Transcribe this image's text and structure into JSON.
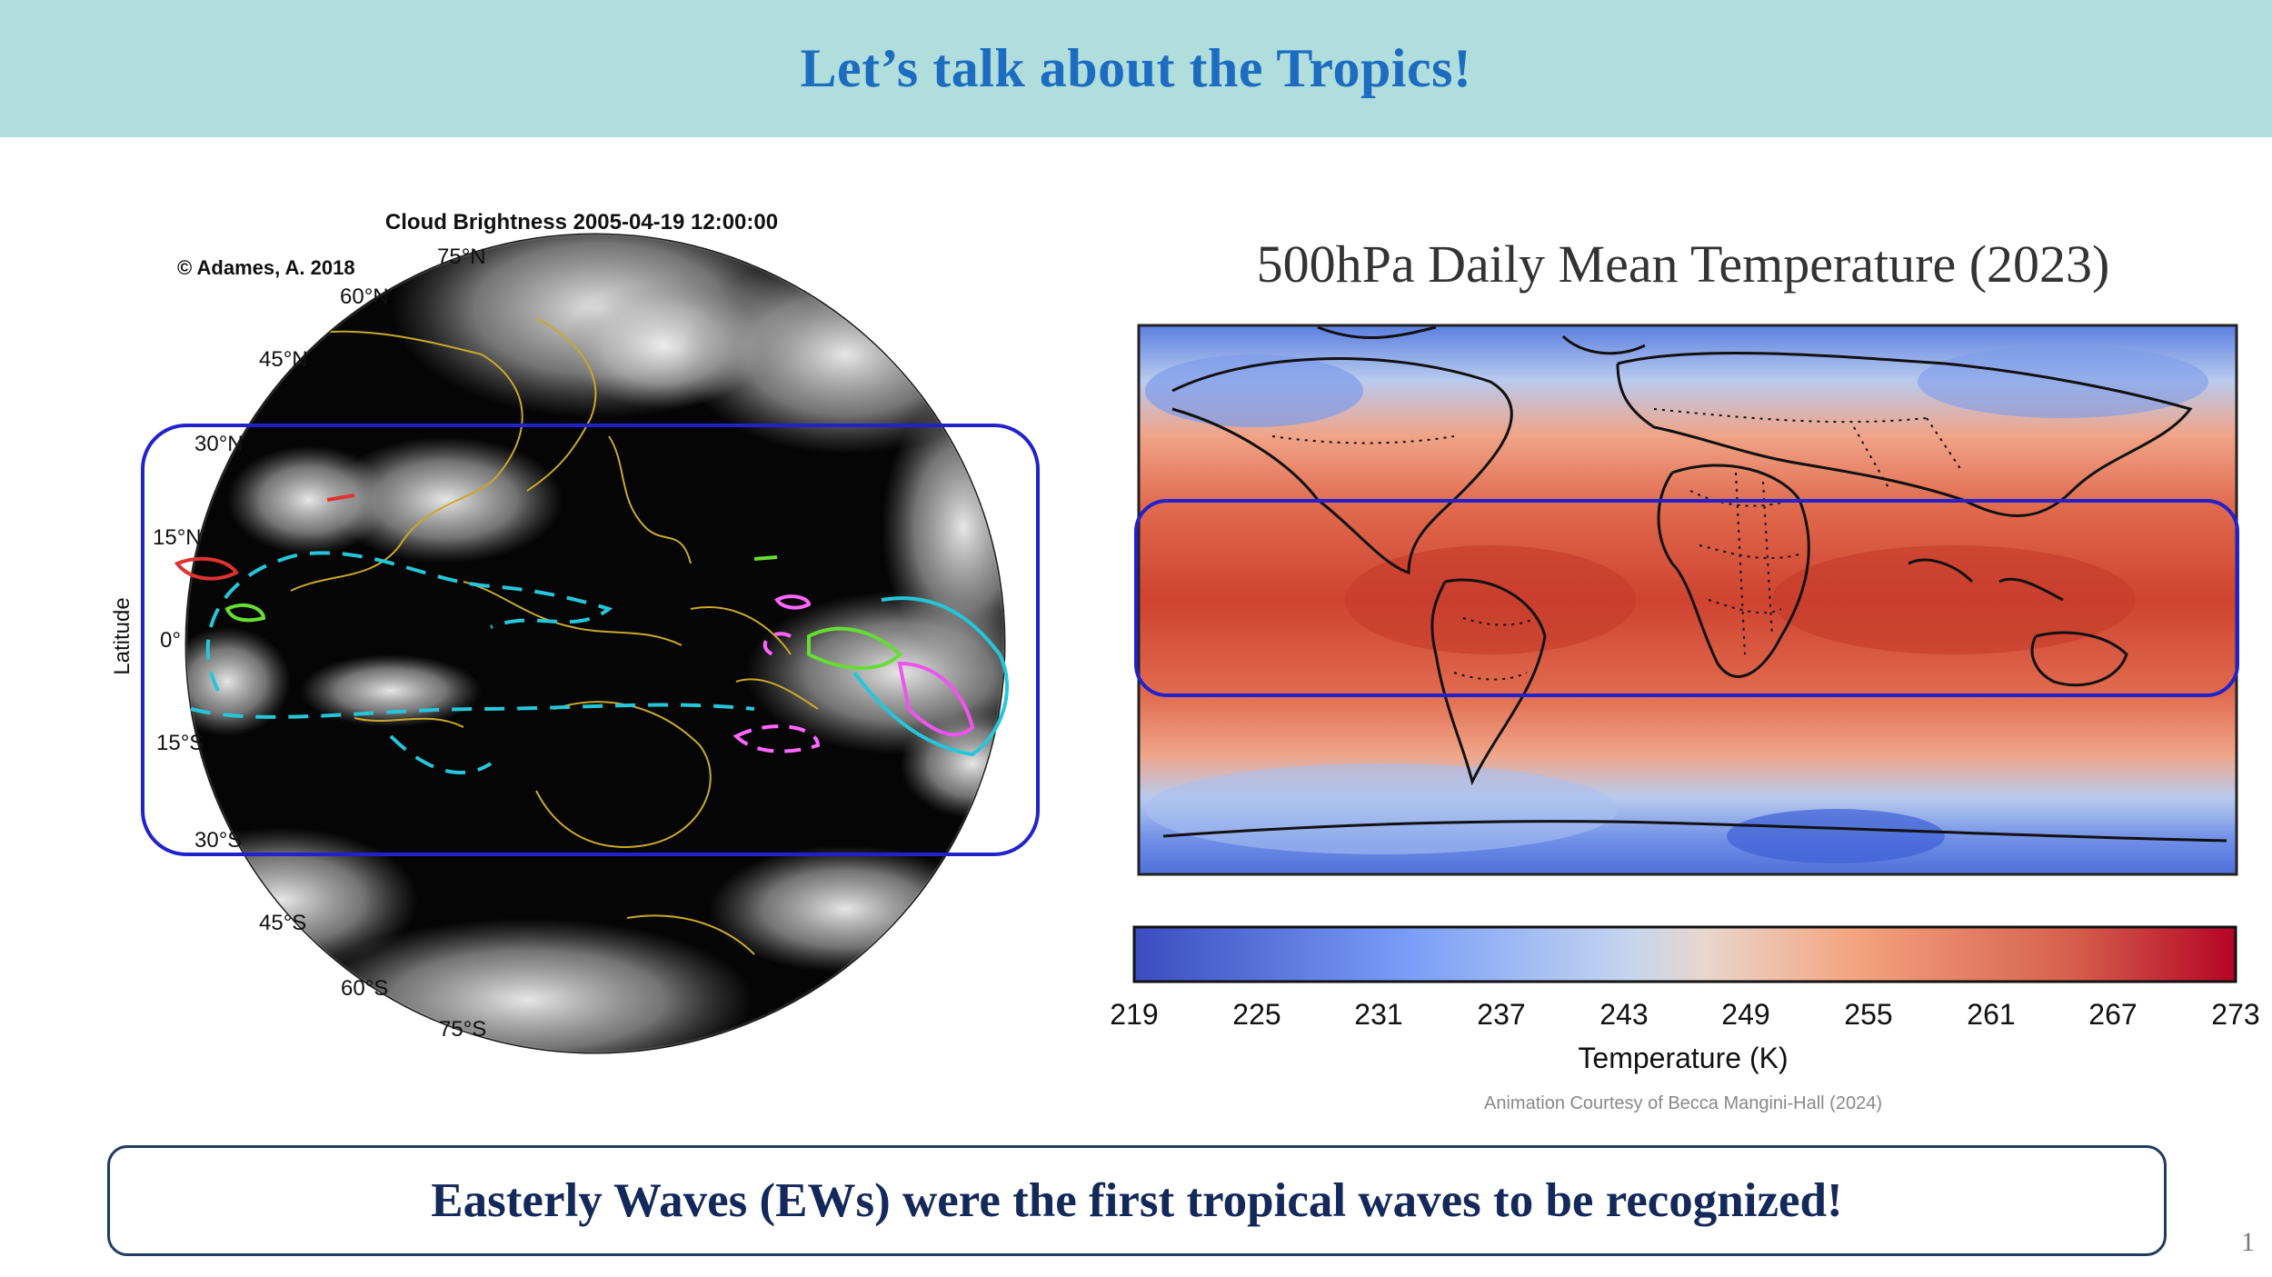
{
  "slide": {
    "title": "Let’s talk about the Tropics!",
    "message": "Easterly Waves (EWs) were the first tropical waves to be recognized!",
    "page_number": "1"
  },
  "globe_figure": {
    "title": "Cloud Brightness 2005-04-19 12:00:00",
    "copyright": "© Adames, A. 2018",
    "axis_label": "Latitude",
    "lat_labels": [
      "75°N",
      "60°N",
      "45°N",
      "30°N",
      "15°N",
      "0°",
      "15°S",
      "30°S",
      "45°S",
      "60°S",
      "75°S"
    ],
    "highlight_color": "#2222cc"
  },
  "map_figure": {
    "title": "500hPa Daily Mean Temperature (2023)",
    "colorbar_label": "Temperature (K)",
    "colorbar_ticks": [
      "219",
      "225",
      "231",
      "237",
      "243",
      "249",
      "255",
      "261",
      "267",
      "273"
    ],
    "credit": "Animation Courtesy of Becca Mangini-Hall (2024)",
    "highlight_color": "#2222cc"
  },
  "colors": {
    "banner": "#b0dedd",
    "title_text": "#1d6cc0",
    "footer_text": "#14285a",
    "cold": "#3b4cc0",
    "warm": "#b40426"
  }
}
